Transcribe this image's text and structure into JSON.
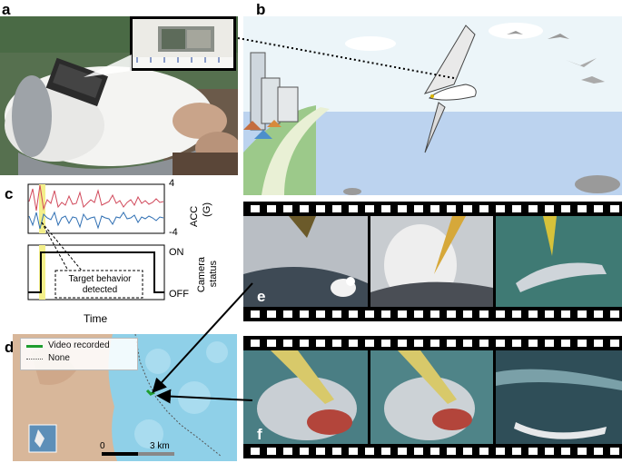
{
  "panels": {
    "a": "a",
    "b": "b",
    "c": "c",
    "d": "d",
    "e": "e",
    "f": "f"
  },
  "panel_c": {
    "acc_label": "ACC",
    "acc_unit": "(G)",
    "acc_max": "4",
    "acc_min": "-4",
    "cam_label": "Camera",
    "cam_label2": "status",
    "cam_on": "ON",
    "cam_off": "OFF",
    "annotation_line1": "Target behavior",
    "annotation_line2": "detected",
    "xlabel": "Time"
  },
  "panel_d": {
    "legend_video": "Video recorded",
    "legend_none": "None",
    "scale_start": "0",
    "scale_end": "3 km"
  },
  "colors": {
    "acc_red": "#d1495b",
    "acc_blue": "#2f6fb3",
    "highlight_yellow": "#f3ef8a",
    "video_green": "#1f9d2f",
    "map_water": "#8fd0e8",
    "map_land": "#d8b79a",
    "sea": "#bcd3ef",
    "sky": "#e9f3f8"
  }
}
